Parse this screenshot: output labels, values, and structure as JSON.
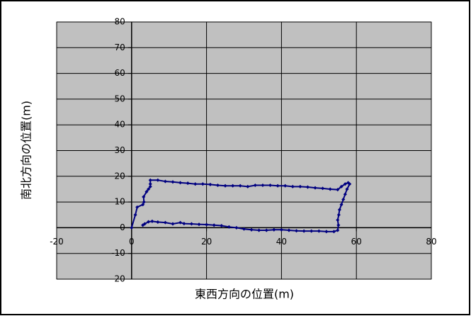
{
  "chart_data": {
    "type": "scatter",
    "x_label": "東西方向の位置(m)",
    "y_label": "南北方向の位置(m)",
    "xlim": [
      -20,
      80
    ],
    "xticks": [
      -20,
      0,
      20,
      40,
      60,
      80
    ],
    "ylim": [
      -20,
      80
    ],
    "yticks": [
      -20,
      -10,
      0,
      10,
      20,
      30,
      40,
      50,
      60,
      70,
      80
    ],
    "grid": true,
    "color": "#000080",
    "x": [
      0,
      1,
      1.5,
      3,
      3.3,
      3.2,
      4,
      4.5,
      5,
      5,
      5,
      7,
      9,
      11,
      13,
      15,
      17,
      19,
      21,
      23,
      25,
      27,
      29,
      31,
      33,
      35,
      37,
      39,
      41,
      43,
      45,
      47,
      49,
      51,
      53,
      55,
      56,
      57,
      57.8,
      58.2,
      57.5,
      57,
      56.5,
      56,
      55.5,
      55.3,
      55,
      55.2,
      55,
      54,
      52,
      50,
      48,
      46,
      44,
      42,
      40,
      38,
      36,
      34,
      32,
      30,
      28,
      26,
      24,
      22,
      20,
      18,
      16,
      14,
      13,
      11,
      9,
      7,
      5.5,
      4.5,
      3.5,
      3
    ],
    "y": [
      0,
      5,
      8,
      9,
      10,
      12,
      14,
      15,
      16,
      17,
      18.5,
      18.5,
      18,
      17.8,
      17.5,
      17.3,
      17,
      17,
      16.8,
      16.5,
      16.3,
      16.3,
      16.3,
      16,
      16.5,
      16.5,
      16.5,
      16.3,
      16.3,
      16,
      16,
      15.8,
      15.5,
      15.3,
      15,
      14.8,
      16,
      17,
      17.5,
      17,
      15,
      13,
      11,
      9,
      7,
      5,
      3,
      1,
      -1,
      -1.5,
      -1.5,
      -1.3,
      -1.3,
      -1.3,
      -1.2,
      -1,
      -0.8,
      -0.8,
      -1,
      -1,
      -0.8,
      -0.5,
      0,
      0.3,
      0.8,
      1,
      1.2,
      1.3,
      1.5,
      1.6,
      2,
      1.5,
      2,
      2.2,
      2.5,
      2.3,
      1.5,
      1
    ]
  }
}
